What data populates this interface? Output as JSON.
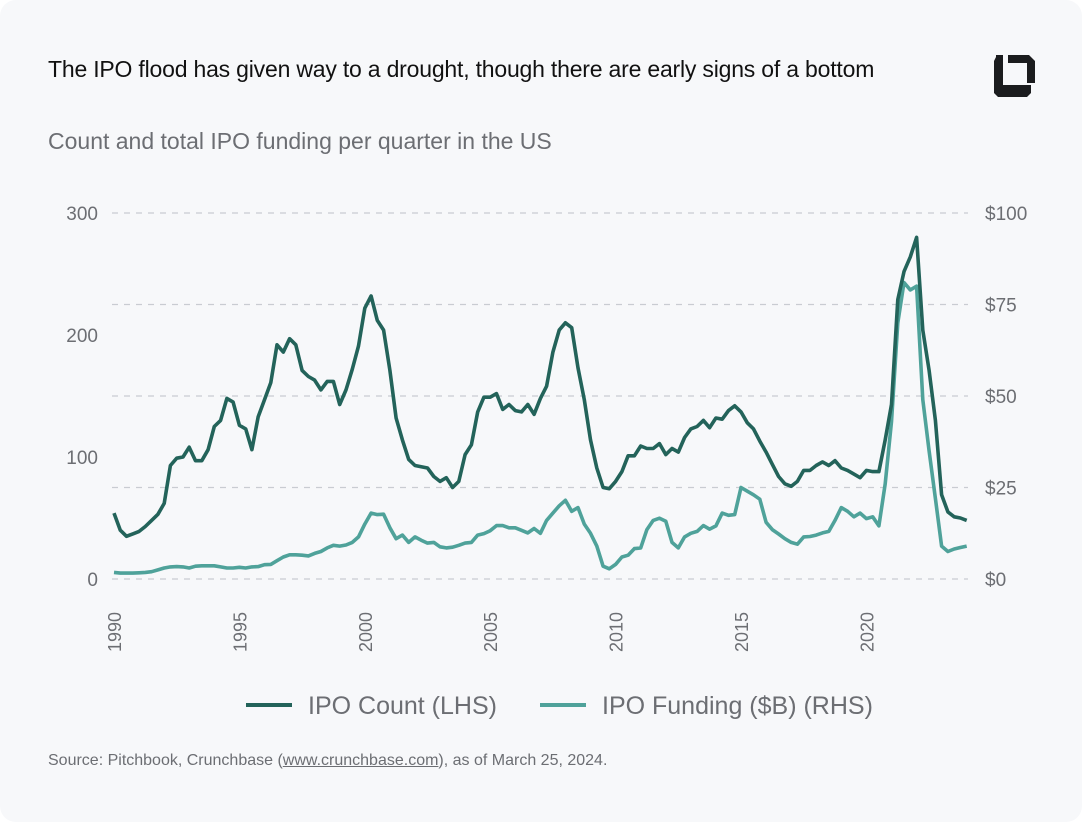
{
  "title": "The IPO flood has given way to a drought, though there are early signs of a bottom",
  "subtitle": "Count and total IPO funding per quarter in the US",
  "logo": "crunchbase-logo",
  "source": {
    "prefix": "Source: Pitchbook, Crunchbase (",
    "link": "www.crunchbase.com",
    "suffix": "), as of March 25, 2024."
  },
  "colors": {
    "count": "#23635a",
    "funding": "#4fa29a",
    "grid": "#c9ccd2",
    "tick": "#6c6e73"
  },
  "chart_data": {
    "type": "line",
    "x_start": "1990 Q1",
    "frequency": "quarterly",
    "x_ticks": [
      "1990",
      "1995",
      "2000",
      "2005",
      "2010",
      "2015",
      "2020"
    ],
    "y_left": {
      "ticks": [
        "0",
        "100",
        "200",
        "300"
      ],
      "range": [
        0,
        300
      ]
    },
    "y_right": {
      "ticks": [
        "$0",
        "$25",
        "$50",
        "$75",
        "$100"
      ],
      "range": [
        0,
        100
      ]
    },
    "grid": "horizontal dashed",
    "legend_position": "bottom",
    "series": [
      {
        "name": "IPO Count (LHS)",
        "axis": "left",
        "values": [
          54,
          40,
          35,
          37,
          39,
          43,
          48,
          53,
          62,
          93,
          99,
          100,
          108,
          97,
          97,
          106,
          125,
          130,
          148,
          145,
          126,
          123,
          106,
          133,
          147,
          161,
          192,
          186,
          197,
          192,
          171,
          166,
          163,
          155,
          162,
          162,
          143,
          155,
          172,
          191,
          222,
          232,
          212,
          204,
          171,
          132,
          114,
          98,
          93,
          92,
          91,
          84,
          80,
          83,
          75,
          80,
          102,
          110,
          137,
          149,
          149,
          152,
          139,
          143,
          138,
          137,
          143,
          135,
          148,
          158,
          186,
          204,
          210,
          206,
          173,
          147,
          114,
          91,
          75,
          74,
          80,
          88,
          101,
          101,
          109,
          107,
          107,
          111,
          102,
          107,
          104,
          116,
          123,
          125,
          130,
          124,
          132,
          131,
          138,
          142,
          137,
          128,
          123,
          113,
          104,
          94,
          84,
          78,
          76,
          80,
          89,
          89,
          93,
          96,
          93,
          97,
          91,
          89,
          86,
          83,
          89,
          88,
          88,
          114,
          143,
          229,
          252,
          264,
          280,
          204,
          171,
          130,
          69,
          55,
          51,
          50,
          48
        ]
      },
      {
        "name": "IPO Funding ($B) (RHS)",
        "axis": "right",
        "values": [
          1.8,
          1.6,
          1.6,
          1.6,
          1.7,
          1.8,
          2.0,
          2.5,
          3.0,
          3.3,
          3.4,
          3.3,
          3.0,
          3.5,
          3.6,
          3.6,
          3.6,
          3.3,
          3.0,
          3.0,
          3.2,
          3.0,
          3.3,
          3.4,
          3.9,
          4.0,
          5.0,
          6.0,
          6.6,
          6.6,
          6.5,
          6.3,
          7.0,
          7.5,
          8.5,
          9.2,
          9.0,
          9.3,
          10.0,
          11.5,
          15.0,
          18.0,
          17.6,
          17.7,
          14.0,
          11.0,
          12.0,
          10.0,
          11.5,
          10.6,
          9.8,
          10.0,
          8.8,
          8.5,
          8.7,
          9.2,
          9.8,
          10.0,
          12.0,
          12.4,
          13.2,
          14.6,
          14.6,
          14.0,
          14.0,
          13.3,
          12.6,
          13.8,
          12.5,
          16.0,
          18.0,
          20.0,
          21.5,
          18.5,
          19.5,
          15.0,
          12.5,
          9.0,
          3.5,
          2.8,
          4.0,
          6.0,
          6.5,
          8.3,
          8.5,
          13.5,
          16.0,
          16.6,
          15.8,
          10.0,
          8.5,
          11.5,
          12.5,
          13.0,
          14.6,
          13.6,
          14.5,
          18.0,
          17.4,
          17.6,
          25.0,
          24.0,
          23.0,
          21.8,
          15.5,
          13.5,
          12.3,
          11.0,
          10.0,
          9.5,
          11.5,
          11.6,
          12.0,
          12.6,
          13.0,
          16.0,
          19.5,
          18.5,
          17.0,
          18.0,
          16.5,
          17.0,
          14.5,
          26.0,
          43.0,
          70.0,
          81.0,
          79.0,
          80.0,
          49.0,
          35.0,
          22.0,
          9.0,
          7.5,
          8.2,
          8.6,
          9.0
        ]
      }
    ]
  }
}
